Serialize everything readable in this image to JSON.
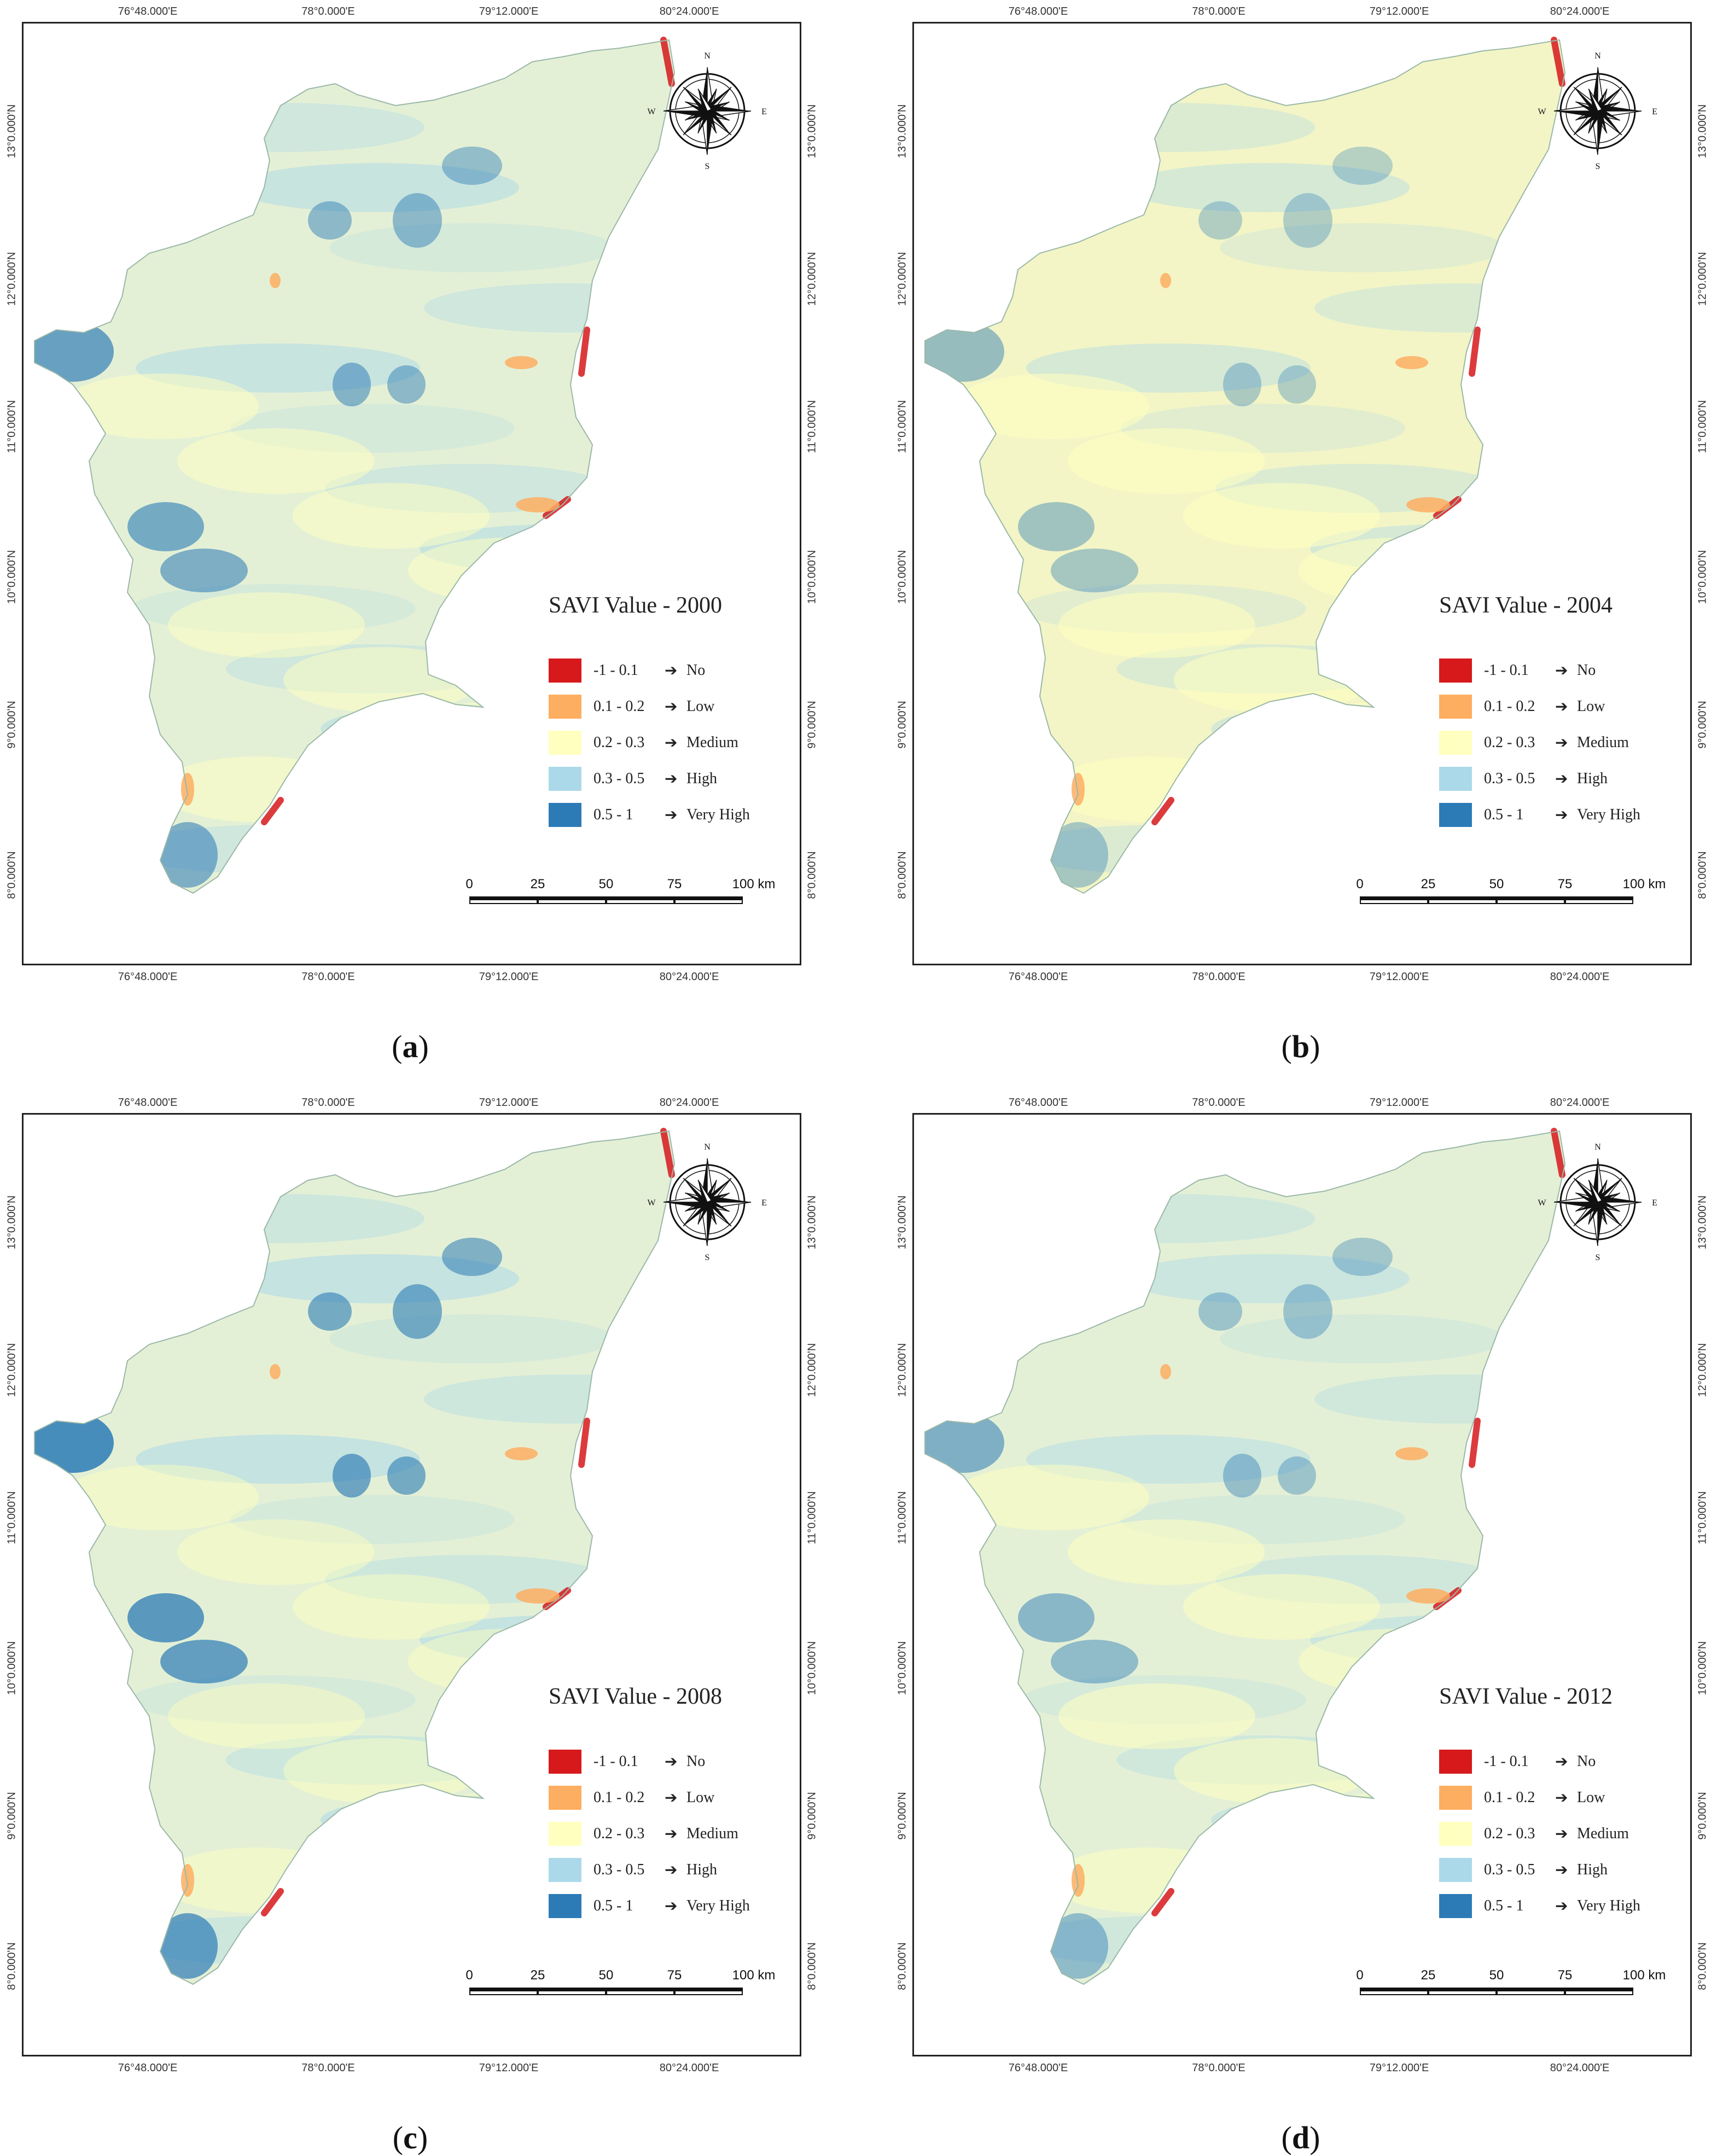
{
  "panels": [
    {
      "caption": "b_a",
      "letter": "a",
      "legend_title": "SAVI Value - 2000",
      "savi_year": 2000
    },
    {
      "caption": "b_b",
      "letter": "b",
      "legend_title": "SAVI Value - 2004",
      "savi_year": 2004
    },
    {
      "caption": "b_c",
      "letter": "c",
      "legend_title": "SAVI Value - 2008",
      "savi_year": 2008
    },
    {
      "caption": "b_d",
      "letter": "d",
      "legend_title": "SAVI Value - 2012",
      "savi_year": 2012
    }
  ],
  "legend": {
    "classes": [
      {
        "range": "-1  -  0.1",
        "arrow": "➔",
        "label": "No",
        "color": "#d7191c"
      },
      {
        "range": "0.1 -  0.2",
        "arrow": "➔",
        "label": "Low",
        "color": "#fdae61"
      },
      {
        "range": "0.2 -  0.3",
        "arrow": "➔",
        "label": "Medium",
        "color": "#ffffbf"
      },
      {
        "range": "0.3 -  0.5",
        "arrow": "➔",
        "label": "High",
        "color": "#abd9e9"
      },
      {
        "range": "0.5 -  1",
        "arrow": "➔",
        "label": "Very High",
        "color": "#2c7bb6"
      }
    ]
  },
  "longitude_labels": [
    "76°48.000'E",
    "78°0.000'E",
    "79°12.000'E",
    "80°24.000'E"
  ],
  "latitude_labels": [
    "13°0.000'N",
    "12°0.000'N",
    "11°0.000'N",
    "10°0.000'N",
    "9°0.000'N",
    "8°0.000'N"
  ],
  "scale_bar": {
    "labels": [
      "0",
      "25",
      "50",
      "75",
      "100 km"
    ]
  },
  "compass": {
    "n": "N",
    "s": "S",
    "e": "E",
    "w": "W"
  },
  "icons": {
    "compass": "north-arrow-compass-rose-icon"
  }
}
